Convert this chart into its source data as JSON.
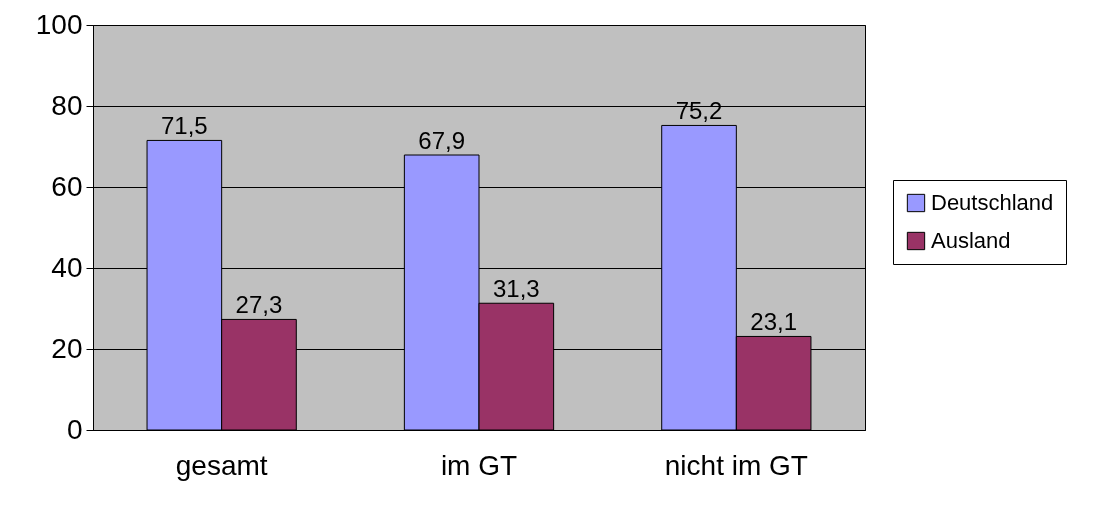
{
  "chart_data": {
    "type": "bar",
    "categories": [
      "gesamt",
      "im GT",
      "nicht im GT"
    ],
    "series": [
      {
        "name": "Deutschland",
        "color": "#9999ff",
        "values": [
          71.5,
          67.9,
          75.2
        ],
        "value_labels": [
          "71,5",
          "67,9",
          "75,2"
        ]
      },
      {
        "name": "Ausland",
        "color": "#993366",
        "values": [
          27.3,
          31.3,
          23.1
        ],
        "value_labels": [
          "27,3",
          "31,3",
          "23,1"
        ]
      }
    ],
    "ylim": [
      0,
      100
    ],
    "yticks": [
      0,
      20,
      40,
      60,
      80,
      100
    ],
    "grid": "y",
    "legend": "right"
  }
}
